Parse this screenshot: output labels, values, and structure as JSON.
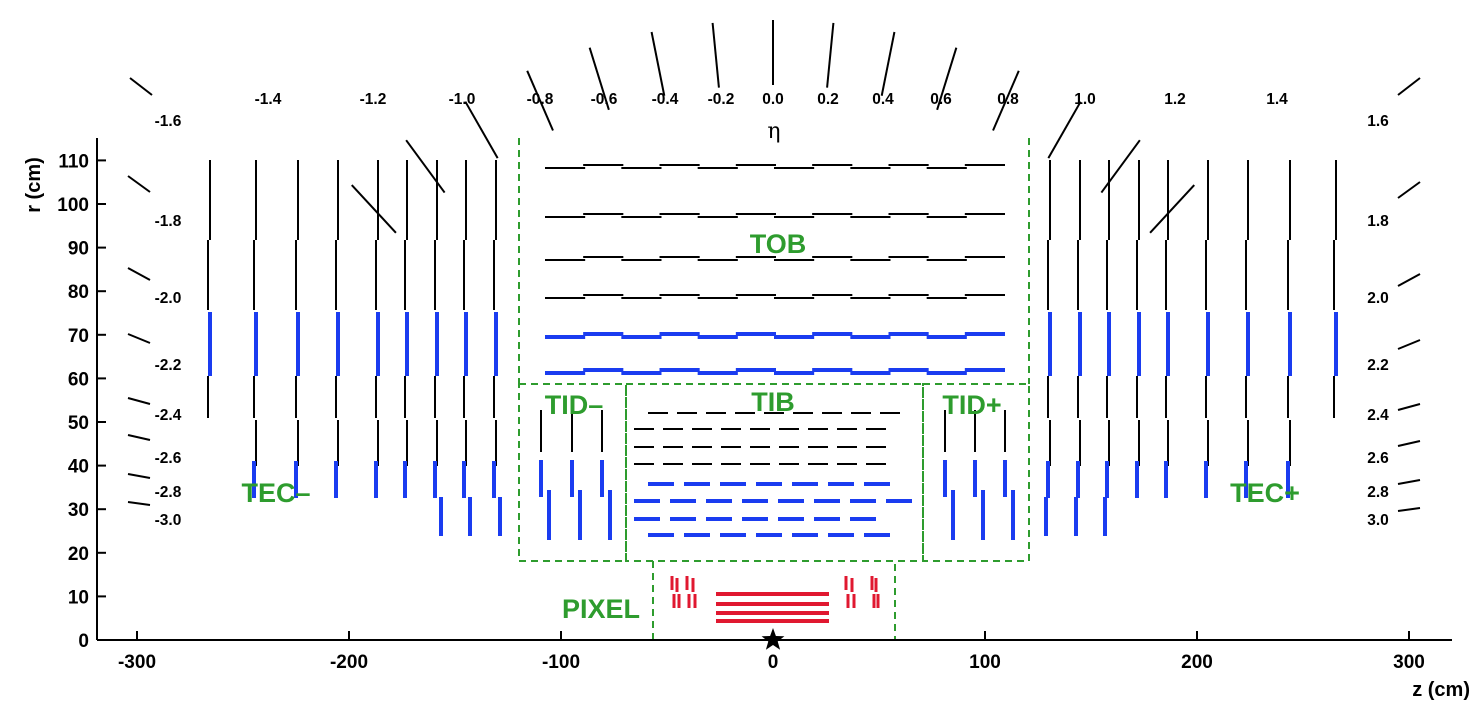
{
  "colors": {
    "axis": "#000000",
    "box": "#2e9c2e",
    "label": "#2e9c2e",
    "module_black": "#000000",
    "module_blue": "#1a3cf0",
    "module_red": "#e01830"
  },
  "axes": {
    "x_title": "z (cm)",
    "y_title": "r (cm)",
    "eta_symbol": "η",
    "x_ticks": [
      "-300",
      "-200",
      "-100",
      "0",
      "100",
      "200",
      "300"
    ],
    "y_ticks": [
      "0",
      "10",
      "20",
      "30",
      "40",
      "50",
      "60",
      "70",
      "80",
      "90",
      "100",
      "110"
    ]
  },
  "eta_labels": {
    "top": [
      "-1.4",
      "-1.2",
      "-1.0",
      "-0.8",
      "-0.6",
      "-0.4",
      "-0.2",
      "0.0",
      "0.2",
      "0.4",
      "0.6",
      "0.8",
      "1.0",
      "1.2",
      "1.4"
    ],
    "left": [
      "-1.6",
      "-1.8",
      "-2.0",
      "-2.2",
      "-2.4",
      "-2.6",
      "-2.8",
      "-3.0"
    ],
    "right": [
      "1.6",
      "1.8",
      "2.0",
      "2.2",
      "2.4",
      "2.6",
      "2.8",
      "3.0"
    ]
  },
  "regions": {
    "tob": "TOB",
    "tib": "TIB",
    "tid_minus": "TID–",
    "tid_plus": "TID+",
    "tec_minus": "TEC–",
    "tec_plus": "TEC+",
    "pixel": "PIXEL"
  }
}
